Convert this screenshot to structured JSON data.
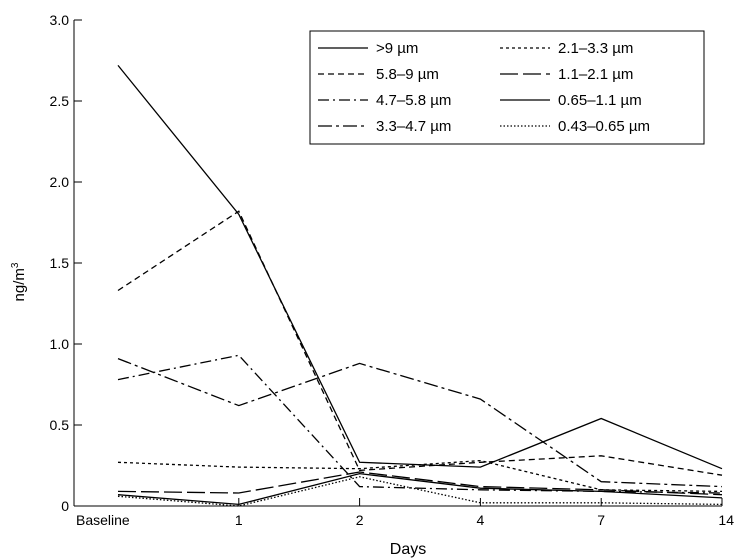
{
  "chart_data": {
    "type": "line",
    "xlabel": "Days",
    "ylabel": "ng/m",
    "ylabel_sup": "3",
    "categories": [
      "Baseline",
      "1",
      "2",
      "4",
      "7",
      "14"
    ],
    "ylim": [
      0,
      3.0
    ],
    "yticks": [
      "0",
      "0.5",
      "1.0",
      "1.5",
      "2.0",
      "2.5",
      "3.0"
    ],
    "grid": false,
    "legend_position": "top-right",
    "series": [
      {
        "name": ">9 µm",
        "values": [
          2.72,
          1.8,
          0.27,
          0.24,
          0.54,
          0.23
        ],
        "dash": ""
      },
      {
        "name": "5.8–9 µm",
        "values": [
          1.33,
          1.82,
          0.22,
          0.27,
          0.31,
          0.19
        ],
        "dash": "6,4"
      },
      {
        "name": "4.7–5.8 µm",
        "values": [
          0.78,
          0.93,
          0.12,
          0.1,
          0.09,
          0.08
        ],
        "dash": "11,4,2,4"
      },
      {
        "name": "3.3–4.7 µm",
        "values": [
          0.91,
          0.62,
          0.88,
          0.66,
          0.15,
          0.12
        ],
        "dash": "14,4,3,4"
      },
      {
        "name": "2.1–3.3 µm",
        "values": [
          0.27,
          0.24,
          0.23,
          0.28,
          0.1,
          0.09
        ],
        "dash": "3,3"
      },
      {
        "name": "1.1–2.1 µm",
        "values": [
          0.09,
          0.08,
          0.21,
          0.12,
          0.1,
          0.07
        ],
        "dash": "18,5"
      },
      {
        "name": "0.65–1.1 µm",
        "values": [
          0.07,
          0.01,
          0.2,
          0.11,
          0.09,
          0.05
        ],
        "dash": ""
      },
      {
        "name": "0.43–0.65 µm",
        "values": [
          0.06,
          0.0,
          0.18,
          0.02,
          0.02,
          0.01
        ],
        "dash": "1.5,2"
      }
    ]
  }
}
